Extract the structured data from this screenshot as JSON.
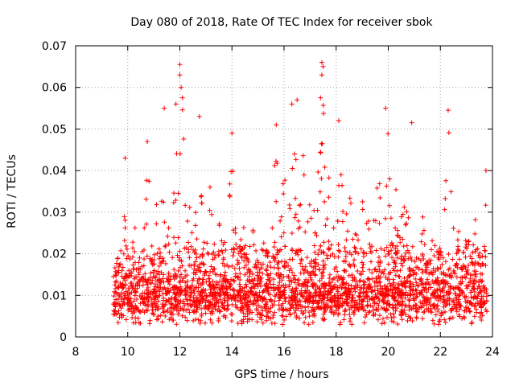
{
  "chart_data": {
    "type": "scatter",
    "title": "Day 080 of 2018, Rate Of TEC Index for receiver sbok",
    "xlabel": "GPS time / hours",
    "ylabel": "ROTI / TECUs",
    "xlim": [
      8,
      24
    ],
    "ylim": [
      0,
      0.07
    ],
    "xticks": [
      8,
      10,
      12,
      14,
      16,
      18,
      20,
      22,
      24
    ],
    "yticks": [
      0,
      0.01,
      0.02,
      0.03,
      0.04,
      0.05,
      0.06,
      0.07
    ],
    "xtick_labels": [
      "8",
      "10",
      "12",
      "14",
      "16",
      "18",
      "20",
      "22",
      "24"
    ],
    "ytick_labels": [
      "0",
      "0.01",
      "0.02",
      "0.03",
      "0.04",
      "0.05",
      "0.06",
      "0.07"
    ],
    "grid": true,
    "marker": "plus",
    "color": "#ff0000",
    "series": [
      {
        "name": "ROTI",
        "x_range": [
          9.45,
          23.8
        ],
        "baseline": 0.0095,
        "notable_points": [
          {
            "x": 9.9,
            "y": 0.043
          },
          {
            "x": 10.75,
            "y": 0.047
          },
          {
            "x": 11.4,
            "y": 0.055
          },
          {
            "x": 11.85,
            "y": 0.056
          },
          {
            "x": 12.0,
            "y": 0.0655
          },
          {
            "x": 12.0,
            "y": 0.063
          },
          {
            "x": 12.05,
            "y": 0.06
          },
          {
            "x": 12.1,
            "y": 0.0575
          },
          {
            "x": 12.75,
            "y": 0.053
          },
          {
            "x": 14.0,
            "y": 0.049
          },
          {
            "x": 15.7,
            "y": 0.051
          },
          {
            "x": 16.3,
            "y": 0.056
          },
          {
            "x": 16.5,
            "y": 0.057
          },
          {
            "x": 17.45,
            "y": 0.066
          },
          {
            "x": 17.5,
            "y": 0.065
          },
          {
            "x": 17.45,
            "y": 0.063
          },
          {
            "x": 17.4,
            "y": 0.0575
          },
          {
            "x": 18.1,
            "y": 0.052
          },
          {
            "x": 19.9,
            "y": 0.055
          },
          {
            "x": 20.9,
            "y": 0.0515
          },
          {
            "x": 22.3,
            "y": 0.0545
          },
          {
            "x": 23.75,
            "y": 0.04
          },
          {
            "x": 18.15,
            "y": 0.003
          },
          {
            "x": 22.2,
            "y": 0.0035
          }
        ]
      }
    ]
  }
}
